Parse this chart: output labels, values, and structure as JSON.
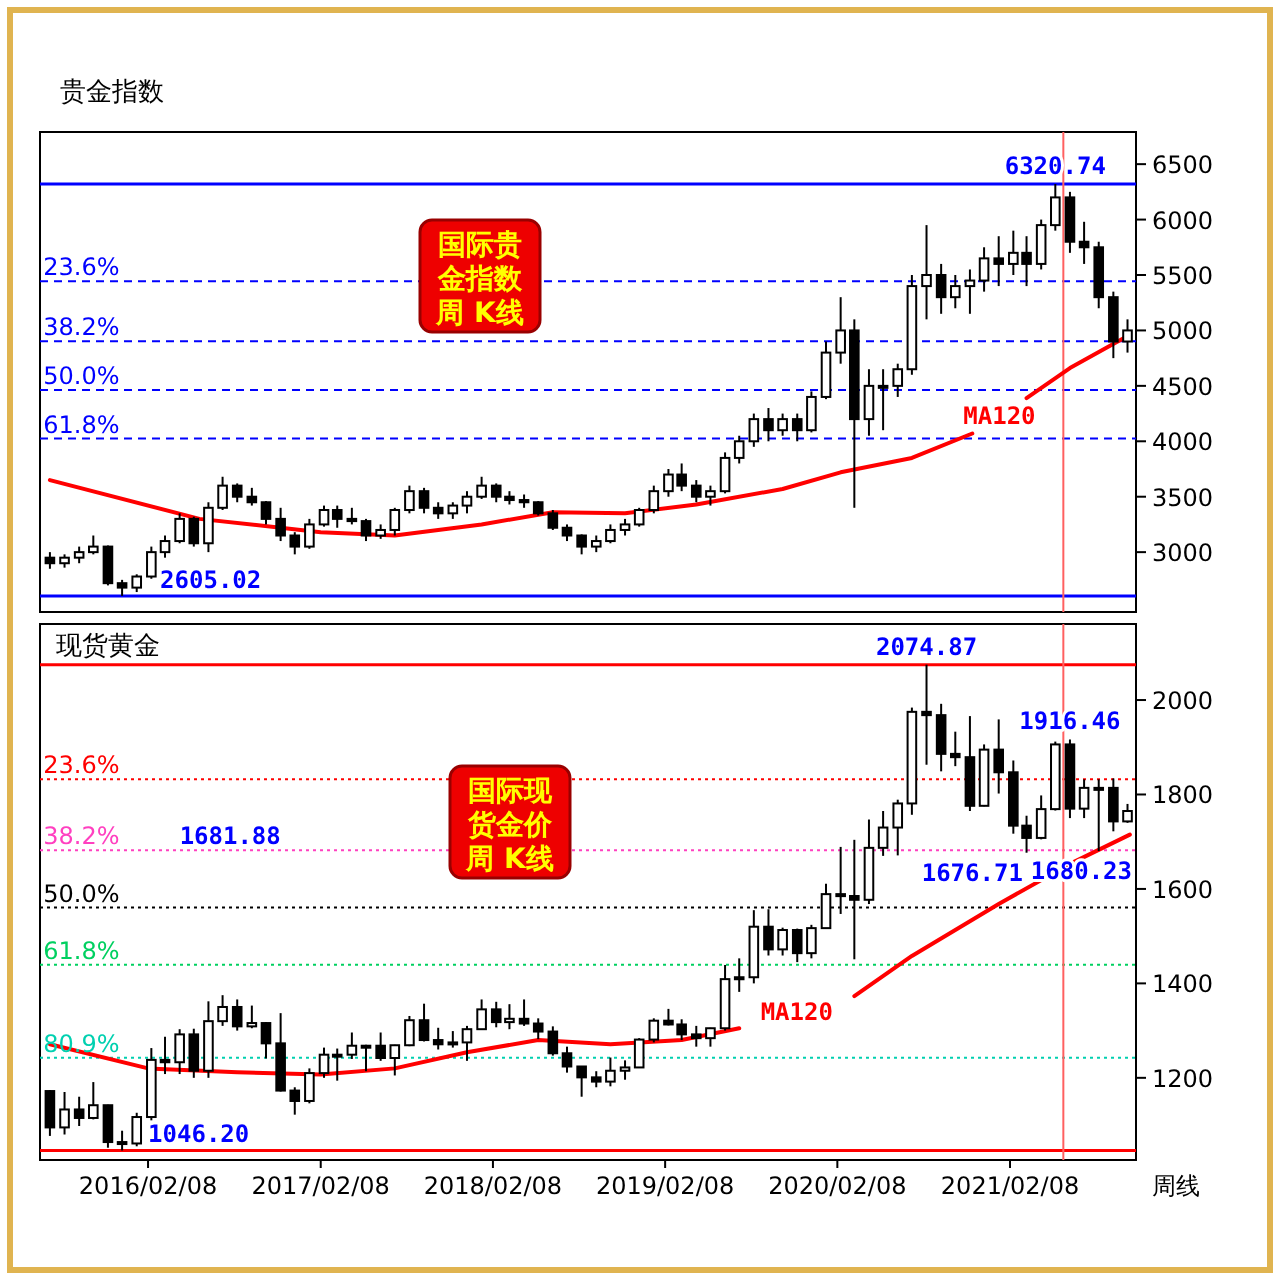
{
  "chart_data": [
    {
      "type": "candlestick",
      "title": "贵金指数",
      "color": "#000000",
      "tick_labels": "y",
      "xlim": [
        "2015-06-24",
        "2021-11-02"
      ],
      "ylim": [
        2460,
        6790
      ],
      "yticks": [
        3000,
        3500,
        4000,
        4500,
        5000,
        5500,
        6000,
        6500
      ],
      "x": [
        "2015-07-15",
        "2015-08-15",
        "2015-09-15",
        "2015-10-15",
        "2015-11-15",
        "2015-12-15",
        "2016-01-15",
        "2016-02-15",
        "2016-03-15",
        "2016-04-15",
        "2016-05-15",
        "2016-06-15",
        "2016-07-15",
        "2016-08-15",
        "2016-09-15",
        "2016-10-15",
        "2016-11-15",
        "2016-12-15",
        "2017-01-15",
        "2017-02-15",
        "2017-03-15",
        "2017-04-15",
        "2017-05-15",
        "2017-06-15",
        "2017-07-15",
        "2017-08-15",
        "2017-09-15",
        "2017-10-15",
        "2017-11-15",
        "2017-12-15",
        "2018-01-15",
        "2018-02-15",
        "2018-03-15",
        "2018-04-15",
        "2018-05-15",
        "2018-06-15",
        "2018-07-15",
        "2018-08-15",
        "2018-09-15",
        "2018-10-15",
        "2018-11-15",
        "2018-12-15",
        "2019-01-15",
        "2019-02-15",
        "2019-03-15",
        "2019-04-15",
        "2019-05-15",
        "2019-06-15",
        "2019-07-15",
        "2019-08-15",
        "2019-09-15",
        "2019-10-15",
        "2019-11-15",
        "2019-12-15",
        "2020-01-15",
        "2020-02-15",
        "2020-03-15",
        "2020-04-15",
        "2020-05-15",
        "2020-06-15",
        "2020-07-15",
        "2020-08-15",
        "2020-09-15",
        "2020-10-15",
        "2020-11-15",
        "2020-12-15",
        "2021-01-15",
        "2021-02-15",
        "2021-03-15",
        "2021-04-15",
        "2021-05-15",
        "2021-06-15",
        "2021-07-15",
        "2021-08-15",
        "2021-09-15",
        "2021-10-15"
      ],
      "ohlc": [
        [
          2950,
          3000,
          2850,
          2900
        ],
        [
          2900,
          2980,
          2860,
          2950
        ],
        [
          2950,
          3050,
          2900,
          3000
        ],
        [
          3000,
          3150,
          2980,
          3050
        ],
        [
          3050,
          3060,
          2700,
          2720
        ],
        [
          2720,
          2750,
          2605.02,
          2680
        ],
        [
          2680,
          2800,
          2640,
          2780
        ],
        [
          2780,
          3050,
          2760,
          3000
        ],
        [
          3000,
          3150,
          2950,
          3100
        ],
        [
          3100,
          3350,
          3080,
          3300
        ],
        [
          3300,
          3320,
          3050,
          3080
        ],
        [
          3080,
          3450,
          3000,
          3400
        ],
        [
          3400,
          3680,
          3380,
          3600
        ],
        [
          3600,
          3620,
          3450,
          3500
        ],
        [
          3500,
          3580,
          3420,
          3450
        ],
        [
          3450,
          3460,
          3250,
          3300
        ],
        [
          3300,
          3400,
          3100,
          3150
        ],
        [
          3150,
          3180,
          2980,
          3050
        ],
        [
          3050,
          3300,
          3030,
          3250
        ],
        [
          3250,
          3420,
          3230,
          3380
        ],
        [
          3380,
          3420,
          3220,
          3300
        ],
        [
          3300,
          3400,
          3250,
          3280
        ],
        [
          3280,
          3300,
          3100,
          3150
        ],
        [
          3150,
          3250,
          3120,
          3200
        ],
        [
          3200,
          3400,
          3150,
          3380
        ],
        [
          3380,
          3600,
          3350,
          3550
        ],
        [
          3550,
          3580,
          3350,
          3400
        ],
        [
          3400,
          3450,
          3300,
          3350
        ],
        [
          3350,
          3450,
          3300,
          3420
        ],
        [
          3420,
          3550,
          3350,
          3500
        ],
        [
          3500,
          3680,
          3480,
          3600
        ],
        [
          3600,
          3620,
          3450,
          3500
        ],
        [
          3500,
          3550,
          3430,
          3470
        ],
        [
          3470,
          3520,
          3400,
          3450
        ],
        [
          3450,
          3460,
          3330,
          3350
        ],
        [
          3350,
          3380,
          3200,
          3220
        ],
        [
          3220,
          3250,
          3100,
          3150
        ],
        [
          3150,
          3160,
          2980,
          3050
        ],
        [
          3050,
          3150,
          3000,
          3100
        ],
        [
          3100,
          3250,
          3080,
          3200
        ],
        [
          3200,
          3300,
          3150,
          3250
        ],
        [
          3250,
          3400,
          3230,
          3380
        ],
        [
          3380,
          3600,
          3350,
          3550
        ],
        [
          3550,
          3750,
          3500,
          3700
        ],
        [
          3700,
          3800,
          3550,
          3600
        ],
        [
          3600,
          3650,
          3450,
          3500
        ],
        [
          3500,
          3600,
          3420,
          3550
        ],
        [
          3550,
          3900,
          3530,
          3850
        ],
        [
          3850,
          4050,
          3800,
          4000
        ],
        [
          4000,
          4250,
          3950,
          4200
        ],
        [
          4200,
          4300,
          4000,
          4100
        ],
        [
          4100,
          4250,
          4050,
          4200
        ],
        [
          4200,
          4250,
          4000,
          4100
        ],
        [
          4100,
          4450,
          4080,
          4400
        ],
        [
          4400,
          4900,
          4380,
          4800
        ],
        [
          4800,
          5300,
          4700,
          5000
        ],
        [
          5000,
          5100,
          3400,
          4200
        ],
        [
          4200,
          4650,
          4050,
          4500
        ],
        [
          4500,
          4650,
          4100,
          4500
        ],
        [
          4500,
          4700,
          4400,
          4650
        ],
        [
          4650,
          5500,
          4600,
          5400
        ],
        [
          5400,
          5950,
          5100,
          5500
        ],
        [
          5500,
          5600,
          5150,
          5300
        ],
        [
          5300,
          5500,
          5200,
          5400
        ],
        [
          5400,
          5550,
          5150,
          5450
        ],
        [
          5450,
          5750,
          5350,
          5650
        ],
        [
          5650,
          5850,
          5400,
          5600
        ],
        [
          5600,
          5900,
          5500,
          5700
        ],
        [
          5700,
          5850,
          5400,
          5600
        ],
        [
          5600,
          6000,
          5550,
          5950
        ],
        [
          5950,
          6320.74,
          5900,
          6200
        ],
        [
          6200,
          6250,
          5700,
          5800
        ],
        [
          5800,
          5980,
          5600,
          5750
        ],
        [
          5750,
          5800,
          5200,
          5300
        ],
        [
          5300,
          5350,
          4750,
          4900
        ],
        [
          4900,
          5100,
          4800,
          5000
        ]
      ],
      "series": [
        {
          "type": "line",
          "color": "#ff0000",
          "x": [
            "2015-07-15",
            "2016-05-27",
            "2017-02-08",
            "2017-07-15",
            "2018-01-15",
            "2018-06-15",
            "2018-11-15",
            "2019-04-15",
            "2019-10-15",
            "2020-02-15",
            "2020-07-15",
            "2020-11-20",
            "2021-01-15",
            "2021-03-15",
            "2021-06-15",
            "2021-10-20"
          ],
          "values": [
            3650,
            3300,
            3180,
            3150,
            3250,
            3360,
            3350,
            3430,
            3570,
            3720,
            3850,
            4070,
            null,
            4390,
            4660,
            4960
          ]
        }
      ],
      "ref_lines": [
        {
          "axis": "y",
          "value": 6320.74,
          "label": null,
          "color": "#0000ff",
          "line_style": "solid"
        },
        {
          "axis": "y",
          "value": 5443.8,
          "label": null,
          "color": "#0000ff",
          "line_style": "dashed"
        },
        {
          "axis": "y",
          "value": 4901.3,
          "label": null,
          "color": "#0000ff",
          "line_style": "dashed"
        },
        {
          "axis": "y",
          "value": 4462.9,
          "label": null,
          "color": "#0000ff",
          "line_style": "dashed"
        },
        {
          "axis": "y",
          "value": 4024.4,
          "label": null,
          "color": "#0000ff",
          "line_style": "dashed"
        },
        {
          "axis": "y",
          "value": 2605.02,
          "label": null,
          "color": "#0000ff",
          "line_style": "solid"
        },
        {
          "axis": "x",
          "value": "2021-06-01",
          "label": null,
          "color": "#ff6060",
          "line_style": "solid"
        }
      ],
      "annotations": [
        {
          "text": "6320.74",
          "x": "2021-05-15",
          "y": 6320.74
        },
        {
          "text": "2605.02",
          "x": "2015-12-15",
          "y": 2605.02
        },
        {
          "text": "23.6%",
          "x": "2015-07-01",
          "y": 5443.8
        },
        {
          "text": "38.2%",
          "x": "2015-07-01",
          "y": 4901.3
        },
        {
          "text": "50.0%",
          "x": "2015-07-01",
          "y": 4462.9
        },
        {
          "text": "61.8%",
          "x": "2015-07-01",
          "y": 4024.4
        },
        "MA120",
        "国际贵金指数周 K线"
      ]
    },
    {
      "type": "candlestick",
      "title": "现货黄金",
      "xlabel": "周线",
      "color": "#000000",
      "xlim": [
        "2015-06-24",
        "2021-11-02"
      ],
      "ylim": [
        1026,
        2161
      ],
      "yticks": [
        1200,
        1400,
        1600,
        1800,
        2000
      ],
      "xticks": [
        {
          "value": "2016-02-08",
          "label": "2016/02/08"
        },
        {
          "value": "2017-02-08",
          "label": "2017/02/08"
        },
        {
          "value": "2018-02-08",
          "label": "2018/02/08"
        },
        {
          "value": "2019-02-08",
          "label": "2019/02/08"
        },
        {
          "value": "2020-02-08",
          "label": "2020/02/08"
        },
        {
          "value": "2021-02-08",
          "label": "2021/02/08"
        }
      ],
      "x": [
        "2015-07-15",
        "2015-08-15",
        "2015-09-15",
        "2015-10-15",
        "2015-11-15",
        "2015-12-15",
        "2016-01-15",
        "2016-02-15",
        "2016-03-15",
        "2016-04-15",
        "2016-05-15",
        "2016-06-15",
        "2016-07-15",
        "2016-08-15",
        "2016-09-15",
        "2016-10-15",
        "2016-11-15",
        "2016-12-15",
        "2017-01-15",
        "2017-02-15",
        "2017-03-15",
        "2017-04-15",
        "2017-05-15",
        "2017-06-15",
        "2017-07-15",
        "2017-08-15",
        "2017-09-15",
        "2017-10-15",
        "2017-11-15",
        "2017-12-15",
        "2018-01-15",
        "2018-02-15",
        "2018-03-15",
        "2018-04-15",
        "2018-05-15",
        "2018-06-15",
        "2018-07-15",
        "2018-08-15",
        "2018-09-15",
        "2018-10-15",
        "2018-11-15",
        "2018-12-15",
        "2019-01-15",
        "2019-02-15",
        "2019-03-15",
        "2019-04-15",
        "2019-05-15",
        "2019-06-15",
        "2019-07-15",
        "2019-08-15",
        "2019-09-15",
        "2019-10-15",
        "2019-11-15",
        "2019-12-15",
        "2020-01-15",
        "2020-02-15",
        "2020-03-15",
        "2020-04-15",
        "2020-05-15",
        "2020-06-15",
        "2020-07-15",
        "2020-08-15",
        "2020-09-15",
        "2020-10-15",
        "2020-11-15",
        "2020-12-15",
        "2021-01-15",
        "2021-02-15",
        "2021-03-15",
        "2021-04-15",
        "2021-05-15",
        "2021-06-15",
        "2021-07-15",
        "2021-08-15",
        "2021-09-15",
        "2021-10-15"
      ],
      "ohlc": [
        [
          1172,
          1174,
          1077,
          1095
        ],
        [
          1095,
          1170,
          1080,
          1133
        ],
        [
          1133,
          1160,
          1098,
          1115
        ],
        [
          1115,
          1191,
          1112,
          1142
        ],
        [
          1142,
          1143,
          1052,
          1064
        ],
        [
          1064,
          1088,
          1046.2,
          1061
        ],
        [
          1061,
          1126,
          1055,
          1117
        ],
        [
          1117,
          1263,
          1110,
          1238
        ],
        [
          1238,
          1287,
          1208,
          1233
        ],
        [
          1233,
          1303,
          1208,
          1292
        ],
        [
          1292,
          1304,
          1200,
          1215
        ],
        [
          1215,
          1362,
          1200,
          1320
        ],
        [
          1320,
          1375,
          1310,
          1350
        ],
        [
          1350,
          1366,
          1300,
          1309
        ],
        [
          1309,
          1353,
          1305,
          1316
        ],
        [
          1316,
          1318,
          1241,
          1273
        ],
        [
          1273,
          1337,
          1171,
          1173
        ],
        [
          1173,
          1180,
          1122,
          1151
        ],
        [
          1151,
          1220,
          1146,
          1210
        ],
        [
          1210,
          1264,
          1200,
          1249
        ],
        [
          1249,
          1262,
          1194,
          1249
        ],
        [
          1249,
          1296,
          1240,
          1268
        ],
        [
          1268,
          1270,
          1214,
          1268
        ],
        [
          1268,
          1296,
          1236,
          1242
        ],
        [
          1242,
          1270,
          1205,
          1269
        ],
        [
          1269,
          1331,
          1267,
          1322
        ],
        [
          1322,
          1357,
          1277,
          1280
        ],
        [
          1280,
          1306,
          1260,
          1271
        ],
        [
          1271,
          1299,
          1264,
          1275
        ],
        [
          1275,
          1310,
          1236,
          1303
        ],
        [
          1303,
          1366,
          1302,
          1345
        ],
        [
          1345,
          1361,
          1307,
          1318
        ],
        [
          1318,
          1356,
          1303,
          1325
        ],
        [
          1325,
          1366,
          1310,
          1315
        ],
        [
          1315,
          1326,
          1282,
          1298
        ],
        [
          1298,
          1309,
          1247,
          1252
        ],
        [
          1252,
          1266,
          1211,
          1224
        ],
        [
          1224,
          1224,
          1160,
          1201
        ],
        [
          1201,
          1214,
          1180,
          1192
        ],
        [
          1192,
          1243,
          1182,
          1215
        ],
        [
          1215,
          1237,
          1196,
          1222
        ],
        [
          1222,
          1284,
          1221,
          1281
        ],
        [
          1281,
          1326,
          1275,
          1321
        ],
        [
          1321,
          1346,
          1311,
          1313
        ],
        [
          1313,
          1324,
          1280,
          1292
        ],
        [
          1292,
          1310,
          1266,
          1284
        ],
        [
          1284,
          1306,
          1266,
          1305
        ],
        [
          1305,
          1439,
          1300,
          1409
        ],
        [
          1409,
          1453,
          1382,
          1413
        ],
        [
          1413,
          1555,
          1400,
          1520
        ],
        [
          1520,
          1557,
          1459,
          1472
        ],
        [
          1472,
          1518,
          1459,
          1513
        ],
        [
          1513,
          1516,
          1445,
          1464
        ],
        [
          1464,
          1524,
          1453,
          1517
        ],
        [
          1517,
          1611,
          1517,
          1589
        ],
        [
          1589,
          1689,
          1547,
          1585
        ],
        [
          1585,
          1704,
          1451,
          1577
        ],
        [
          1577,
          1747,
          1568,
          1687
        ],
        [
          1687,
          1765,
          1670,
          1730
        ],
        [
          1730,
          1789,
          1671,
          1781
        ],
        [
          1781,
          1984,
          1757,
          1975
        ],
        [
          1975,
          2074.87,
          1863,
          1968
        ],
        [
          1968,
          1992,
          1849,
          1886
        ],
        [
          1886,
          1933,
          1860,
          1879
        ],
        [
          1879,
          1966,
          1765,
          1776
        ],
        [
          1776,
          1906,
          1775,
          1895
        ],
        [
          1895,
          1959,
          1802,
          1847
        ],
        [
          1847,
          1872,
          1717,
          1734
        ],
        [
          1734,
          1755,
          1676.71,
          1708
        ],
        [
          1708,
          1798,
          1705,
          1769
        ],
        [
          1769,
          1912,
          1766,
          1906
        ],
        [
          1906,
          1916.46,
          1750,
          1770
        ],
        [
          1770,
          1832,
          1750,
          1814
        ],
        [
          1814,
          1832,
          1680.23,
          1814
        ],
        [
          1814,
          1834,
          1722,
          1743
        ],
        [
          1743,
          1780,
          1740,
          1765
        ]
      ],
      "series": [
        {
          "type": "line",
          "color": "#ff0000",
          "x": [
            "2015-07-15",
            "2016-02-08",
            "2016-08-15",
            "2017-02-08",
            "2017-07-15",
            "2017-12-15",
            "2018-05-15",
            "2018-10-15",
            "2019-03-15",
            "2019-07-15",
            "2019-11-15",
            "2020-03-15",
            "2020-07-15",
            "2021-01-15",
            "2021-06-15",
            "2021-10-20"
          ],
          "values": [
            1271,
            1220,
            1212,
            1207,
            1220,
            1254,
            1280,
            1271,
            1280,
            1305,
            null,
            1373,
            1458,
            1568,
            1653,
            1715
          ]
        }
      ],
      "ref_lines": [
        {
          "axis": "y",
          "value": 2074.87,
          "label": null,
          "color": "#ff0000",
          "line_style": "solid"
        },
        {
          "axis": "y",
          "value": 1832.1,
          "label": null,
          "color": "#ff0000",
          "line_style": "dotted"
        },
        {
          "axis": "y",
          "value": 1681.88,
          "label": null,
          "color": "#ff40c0",
          "line_style": "dotted"
        },
        {
          "axis": "y",
          "value": 1560.5,
          "label": null,
          "color": "#000000",
          "line_style": "dotted"
        },
        {
          "axis": "y",
          "value": 1439.2,
          "label": null,
          "color": "#00d060",
          "line_style": "dotted"
        },
        {
          "axis": "y",
          "value": 1242.7,
          "label": null,
          "color": "#00d0b0",
          "line_style": "dotted"
        },
        {
          "axis": "y",
          "value": 1046.2,
          "label": null,
          "color": "#ff0000",
          "line_style": "solid"
        },
        {
          "axis": "x",
          "value": "2021-06-01",
          "label": null,
          "color": "#ff6060",
          "line_style": "solid"
        }
      ],
      "annotations": [
        {
          "text": "2074.87",
          "x": "2020-08-15",
          "y": 2074.87
        },
        {
          "text": "1916.46",
          "x": "2021-06-15",
          "y": 1916.46
        },
        {
          "text": "1681.88",
          "x": "2016-04-15",
          "y": 1681.88
        },
        {
          "text": "1676.71",
          "x": "2021-03-15",
          "y": 1676.71
        },
        {
          "text": "1680.23",
          "x": "2021-08-15",
          "y": 1680.23
        },
        {
          "text": "1046.20",
          "x": "2015-12-15",
          "y": 1046.2
        },
        {
          "text": "23.6%",
          "x": "2015-07-01",
          "y": 1832.1
        },
        {
          "text": "38.2%",
          "x": "2015-07-01",
          "y": 1681.88
        },
        {
          "text": "50.0%",
          "x": "2015-07-01",
          "y": 1560.5
        },
        {
          "text": "61.8%",
          "x": "2015-07-01",
          "y": 1439.2
        },
        {
          "text": "80.9%",
          "x": "2015-07-01",
          "y": 1242.7
        },
        "MA120",
        "国际现货金价周 K线"
      ]
    }
  ]
}
